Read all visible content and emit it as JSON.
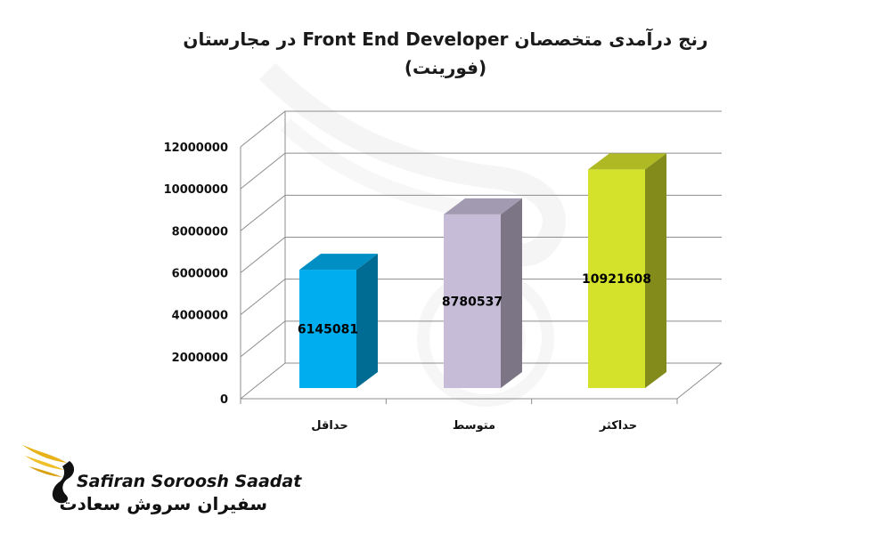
{
  "chart_data": {
    "type": "bar",
    "title_line1": "رنج درآمدی متخصصان Front End Developer در مجارستان",
    "title_line2": "(فورینت)",
    "categories": [
      "حداقل",
      "متوسط",
      "حداکثر"
    ],
    "values": [
      6145081,
      8780537,
      10921608
    ],
    "value_labels": [
      "6145081",
      "8780537",
      "10921608"
    ],
    "colors": [
      "#00aeef",
      "#c6bcd8",
      "#d4e22b"
    ],
    "y_ticks": [
      "0",
      "2000000",
      "4000000",
      "6000000",
      "8000000",
      "10000000",
      "12000000"
    ],
    "ylim": [
      0,
      12000000
    ],
    "grid": true,
    "legend": "none"
  },
  "logo": {
    "text_en": "Safiran Soroosh Saadat",
    "text_fa": "سفیران سروش سعادت"
  }
}
